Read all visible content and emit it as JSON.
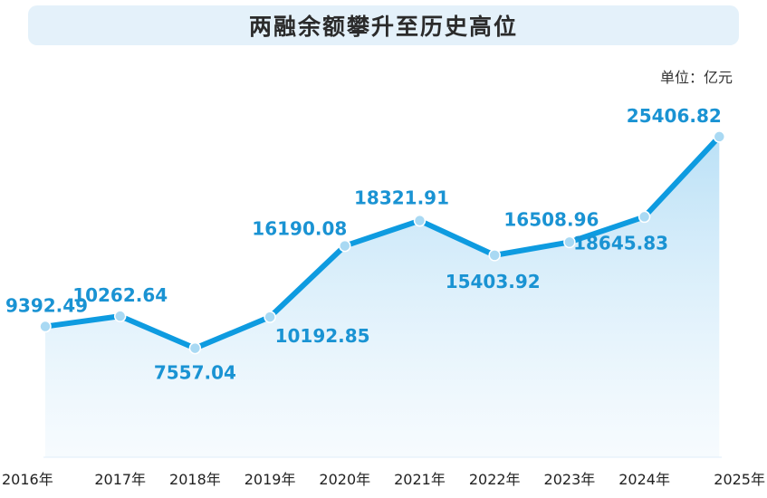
{
  "title": "两融余额攀升至历史高位",
  "unit_label": "单位：亿元",
  "colors": {
    "line": "#0e9be0",
    "point": "#a9d9f3",
    "label": "#1a93d3",
    "title_bg": "#e4f1fa",
    "axis_text": "#222222"
  },
  "chart_data": {
    "type": "area",
    "title": "两融余额攀升至历史高位",
    "unit": "单位：亿元",
    "categories": [
      "2016年",
      "2017年",
      "2018年",
      "2019年",
      "2020年",
      "2021年",
      "2022年",
      "2023年",
      "2024年",
      "2025年"
    ],
    "series": [
      {
        "values": [
          9392.49,
          10262.64,
          7557.04,
          10192.85,
          16190.08,
          18321.91,
          15403.92,
          16508.96,
          18645.83,
          25406.82
        ],
        "labels": [
          "9392.49",
          "10262.64",
          "7557.04",
          "10192.85",
          "16190.08",
          "18321.91",
          "15403.92",
          "16508.96",
          "18645.83",
          "25406.82"
        ]
      }
    ],
    "grid": false,
    "legend": "none"
  }
}
